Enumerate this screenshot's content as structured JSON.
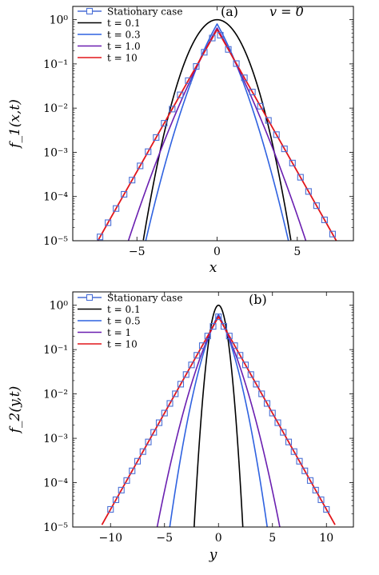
{
  "colors": {
    "stationary": "#4a6fd6",
    "black": "#000000",
    "blue": "#2f62e0",
    "purple": "#6a1fb0",
    "red": "#e2161b"
  },
  "chart_data": [
    {
      "panel": "(a)",
      "annotation": "v = 0",
      "type": "line",
      "yscale": "log",
      "xlabel": "x",
      "ylabel": "f_1(x,t)",
      "xlim": [
        -9.0,
        8.5
      ],
      "ylim": [
        1e-05,
        2.0
      ],
      "xticks": [
        -5,
        0,
        5
      ],
      "xtick_labels": [
        "−5",
        "0",
        "5"
      ],
      "yticks": [
        0,
        -1,
        -2,
        -3,
        -4,
        -5
      ],
      "ytick_labels": [
        "10⁰",
        "10⁻¹",
        "10⁻²",
        "10⁻³",
        "10⁻⁴",
        "10⁻⁵"
      ],
      "legend": [
        "Stationary case",
        "t = 0.1",
        "t = 0.3",
        "t = 1.0",
        "t = 10"
      ],
      "series": [
        {
          "name": "Stationary case",
          "kind": "markers",
          "color": "stationary",
          "peak": 0.6,
          "slope": 1.48,
          "xmin": -7.8,
          "xmax": 7.8,
          "step": 0.5
        },
        {
          "name": "t = 0.1",
          "kind": "gauss",
          "color": "black",
          "peak": 1.0,
          "sigma": 0.96,
          "xmin": -4.6,
          "xmax": 4.6
        },
        {
          "name": "t = 0.3",
          "kind": "mix",
          "color": "blue",
          "peak": 0.8,
          "slope": 1.48,
          "sigma": 1.45,
          "xmin": -6.0,
          "xmax": 6.0
        },
        {
          "name": "t = 1.0",
          "kind": "mix",
          "color": "purple",
          "peak": 0.65,
          "slope": 1.48,
          "sigma": 2.3,
          "xmin": -7.3,
          "xmax": 7.3
        },
        {
          "name": "t = 10",
          "kind": "exp",
          "color": "red",
          "peak": 0.6,
          "slope": 1.48,
          "xmin": -8.1,
          "xmax": 8.1
        }
      ]
    },
    {
      "panel": "(b)",
      "annotation": "",
      "type": "line",
      "yscale": "log",
      "xlabel": "y",
      "ylabel": "f_2(y,t)",
      "xlim": [
        -13.5,
        12.5
      ],
      "ylim": [
        1e-05,
        2.0
      ],
      "xticks": [
        -10,
        -5,
        0,
        5,
        10
      ],
      "xtick_labels": [
        "−10",
        "−5",
        "0",
        "5",
        "10"
      ],
      "yticks": [
        0,
        -1,
        -2,
        -3,
        -4,
        -5
      ],
      "ytick_labels": [
        "10⁰",
        "10⁻¹",
        "10⁻²",
        "10⁻³",
        "10⁻⁴",
        "10⁻⁵"
      ],
      "legend": [
        "Stationary case",
        "t = 0.1",
        "t = 0.5",
        "t = 1",
        "t = 10"
      ],
      "series": [
        {
          "name": "Stationary case",
          "kind": "markers",
          "color": "stationary",
          "peak": 0.55,
          "slope": 1.0,
          "xmin": -10.0,
          "xmax": 10.0,
          "step": 0.5
        },
        {
          "name": "t = 0.1",
          "kind": "gauss",
          "color": "black",
          "peak": 1.0,
          "sigma": 0.47,
          "xmin": -2.3,
          "xmax": 2.3
        },
        {
          "name": "t = 0.5",
          "kind": "mix",
          "color": "blue",
          "peak": 0.62,
          "slope": 1.0,
          "sigma": 1.25,
          "xmin": -5.0,
          "xmax": 5.0
        },
        {
          "name": "t = 1",
          "kind": "mix",
          "color": "purple",
          "peak": 0.57,
          "slope": 1.0,
          "sigma": 1.75,
          "xmin": -6.6,
          "xmax": 6.6
        },
        {
          "name": "t = 10",
          "kind": "exp",
          "color": "red",
          "peak": 0.55,
          "slope": 1.0,
          "xmin": -10.8,
          "xmax": 10.8
        }
      ]
    }
  ]
}
